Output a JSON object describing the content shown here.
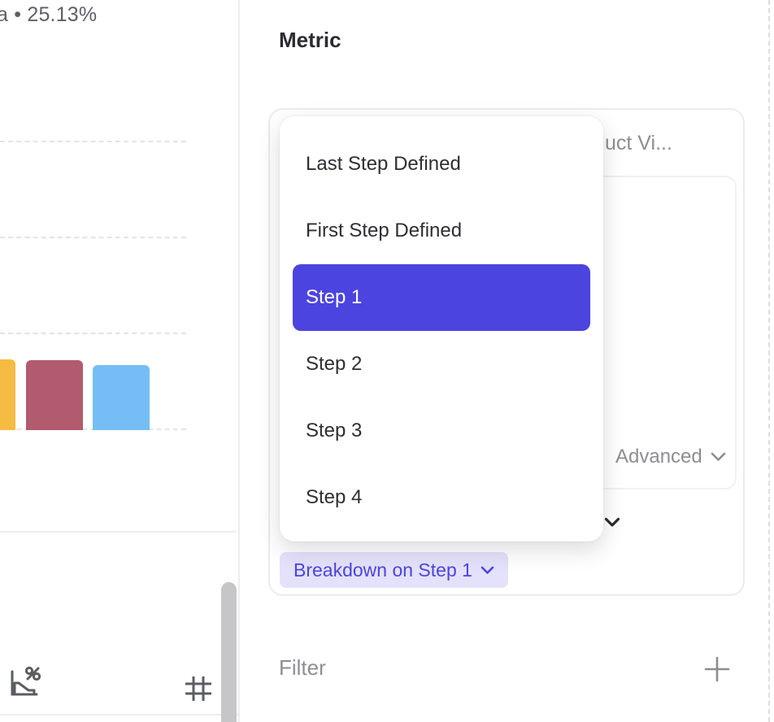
{
  "chart_panel": {
    "legend_text": "a • 25.13%",
    "bars": [
      {
        "name": "funnel-bar-1",
        "color": "#F6BB42"
      },
      {
        "name": "funnel-bar-2",
        "color": "#B25A6E"
      },
      {
        "name": "funnel-bar-3",
        "color": "#74BEF5"
      }
    ],
    "toolbar_icons": [
      "conversion-chart-percent-icon",
      "hash-grid-icon"
    ]
  },
  "metric_panel": {
    "title": "Metric",
    "event_title_truncated": "uct Vi...",
    "advanced_label": "Advanced",
    "breakdown_button_label": "Breakdown on Step 1",
    "dropdown": {
      "items": [
        {
          "label": "Last Step Defined",
          "selected": false
        },
        {
          "label": "First Step Defined",
          "selected": false
        },
        {
          "label": "Step 1",
          "selected": true
        },
        {
          "label": "Step 2",
          "selected": false
        },
        {
          "label": "Step 3",
          "selected": false
        },
        {
          "label": "Step 4",
          "selected": false
        }
      ]
    },
    "filter": {
      "label": "Filter",
      "add_icon": "plus-icon"
    }
  },
  "colors": {
    "accent": "#4C44DE",
    "accent_light_bg": "#E4E1FB",
    "muted_text": "#8D8D95",
    "dark_text": "#2B2B31",
    "icon_gray": "#5A5E63",
    "scrollbar": "#C6C6C8"
  }
}
